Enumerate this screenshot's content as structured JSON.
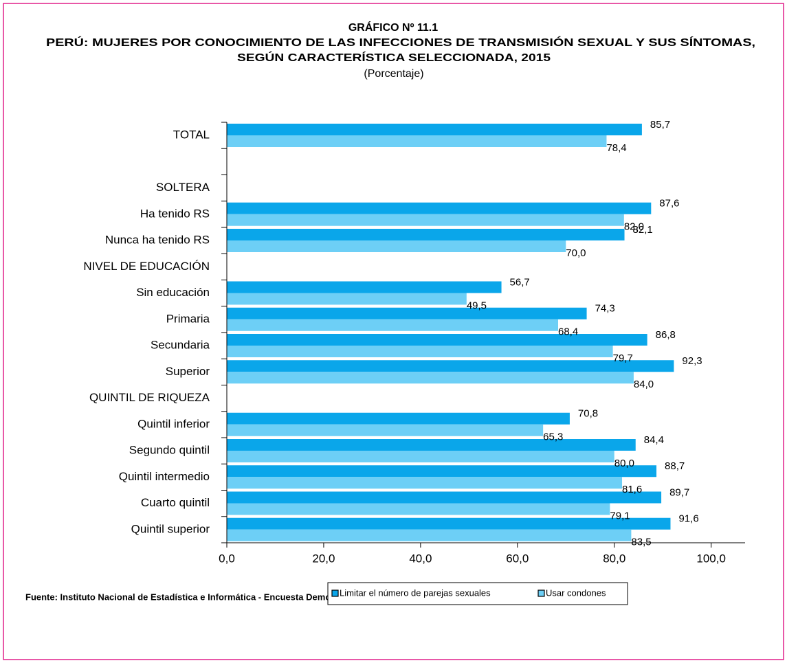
{
  "chart_data": {
    "type": "hbar",
    "title": [
      "GRÁFICO Nº 11.1",
      "PERÚ: MUJERES POR CONOCIMIENTO DE LAS INFECCIONES DE TRANSMISIÓN SEXUAL Y SUS SÍNTOMAS,",
      "SEGÚN CARACTERÍSTICA SELECCIONADA, 2015"
    ],
    "subtitle": "(Porcentaje)",
    "categories": [
      "TOTAL",
      null,
      "SOLTERA",
      "Ha tenido RS",
      "Nunca ha tenido RS",
      "NIVEL DE EDUCACIÓN",
      "Sin educación",
      "Primaria",
      "Secundaria",
      "Superior",
      "QUINTIL DE RIQUEZA",
      "Quintil inferior",
      "Segundo quintil",
      "Quintil intermedio",
      "Cuarto quintil",
      "Quintil superior"
    ],
    "series": [
      {
        "name": "Limitar el número de parejas sexuales",
        "color": "#0aa6ea",
        "values": [
          85.7,
          null,
          null,
          87.6,
          82.1,
          null,
          56.7,
          74.3,
          86.8,
          92.3,
          null,
          70.8,
          84.4,
          88.7,
          89.7,
          91.6
        ],
        "value_labels": [
          "85,7",
          null,
          null,
          "87,6",
          "82,1",
          null,
          "56,7",
          "74,3",
          "86,8",
          "92,3",
          null,
          "70,8",
          "84,4",
          "88,7",
          "89,7",
          "91,6"
        ]
      },
      {
        "name": "Usar condones",
        "color": "#6dcff6",
        "values": [
          78.4,
          null,
          null,
          82.0,
          70.0,
          null,
          49.5,
          68.4,
          79.7,
          84.0,
          null,
          65.3,
          80.0,
          81.6,
          79.1,
          83.5
        ],
        "value_labels": [
          "78,4",
          null,
          null,
          "82,0",
          "70,0",
          null,
          "49,5",
          "68,4",
          "79,7",
          "84,0",
          null,
          "65,3",
          "80,0",
          "81,6",
          "79,1",
          "83,5"
        ]
      }
    ],
    "xlim": [
      0,
      107
    ],
    "xticks": [
      {
        "value": 0,
        "label": "0,0"
      },
      {
        "value": 20,
        "label": "20,0"
      },
      {
        "value": 40,
        "label": "40,0"
      },
      {
        "value": 60,
        "label": "60,0"
      },
      {
        "value": 80,
        "label": "80,0"
      },
      {
        "value": 100,
        "label": "100,0"
      }
    ],
    "source": "Fuente: Instituto Nacional de Estadística e Informática - Encuesta  Demográfica y de Salud Familiar."
  }
}
